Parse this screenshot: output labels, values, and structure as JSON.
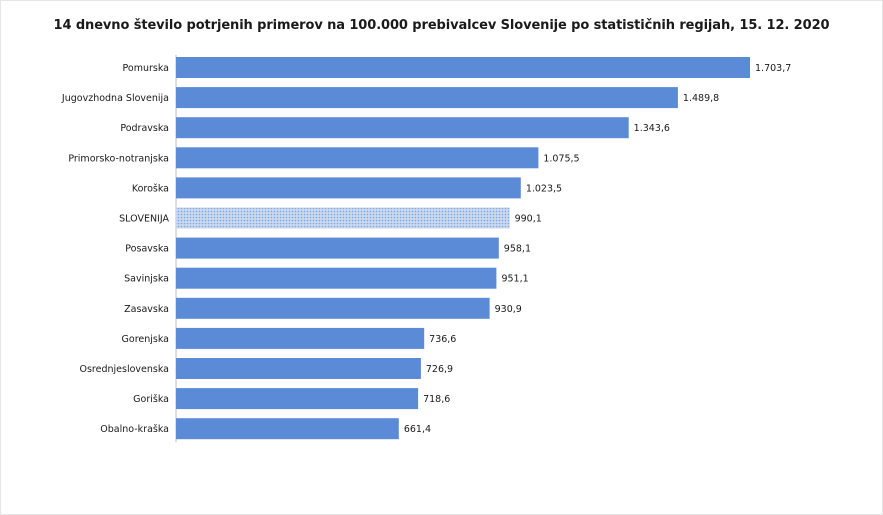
{
  "chart_data": {
    "type": "bar",
    "orientation": "horizontal",
    "title": "14 dnevno število potrjenih primerov na 100.000 prebivalcev Slovenije po statističnih regijah, 15. 12. 2020",
    "categories": [
      "Pomurska",
      "Jugovzhodna Slovenija",
      "Podravska",
      "Primorsko-notranjska",
      "Koroška",
      "SLOVENIJA",
      "Posavska",
      "Savinjska",
      "Zasavska",
      "Gorenjska",
      "Osrednjeslovenska",
      "Goriška",
      "Obalno-kraška"
    ],
    "values": [
      1703.7,
      1489.8,
      1343.6,
      1075.5,
      1023.5,
      990.1,
      958.1,
      951.1,
      930.9,
      736.6,
      726.9,
      718.6,
      661.4
    ],
    "value_labels": [
      "1.703,7",
      "1.489,8",
      "1.343,6",
      "1.075,5",
      "1.023,5",
      "990,1",
      "958,1",
      "951,1",
      "930,9",
      "736,6",
      "726,9",
      "718,6",
      "661,4"
    ],
    "highlight_category": "SLOVENIJA",
    "bar_color": "#5b8ad6",
    "highlight_color": "#b9cde9",
    "xlabel": "",
    "ylabel": "",
    "xlim": [
      0,
      1703.7
    ],
    "grid": false,
    "legend": "none"
  }
}
